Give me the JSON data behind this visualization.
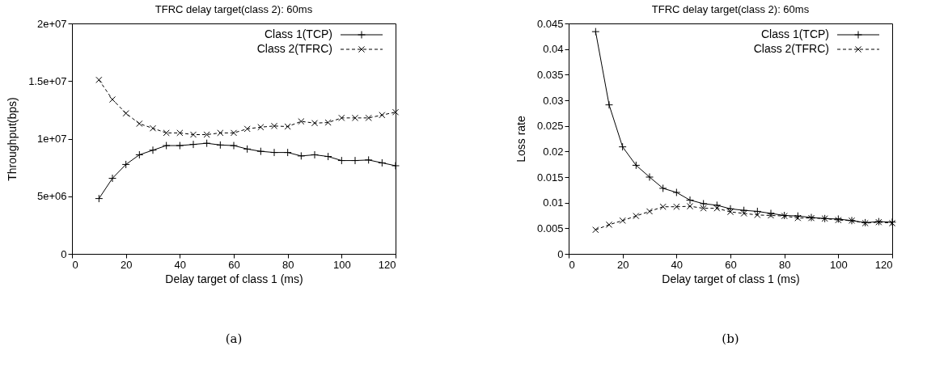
{
  "chart_data": [
    {
      "type": "line",
      "title": "TFRC delay target(class 2): 60ms",
      "xlabel": "Delay target of class 1 (ms)",
      "ylabel": "Throughput(bps)",
      "annotations": [
        "(a)"
      ],
      "x": [
        10,
        15,
        20,
        25,
        30,
        35,
        40,
        45,
        50,
        55,
        60,
        65,
        70,
        75,
        80,
        85,
        90,
        95,
        100,
        105,
        110,
        115,
        120
      ],
      "series": [
        {
          "name": "Class 1(TCP)",
          "color": "#000000",
          "marker": "cross",
          "line_style": "solid",
          "values": [
            4800000,
            6560000,
            7760000,
            8600000,
            9000000,
            9400000,
            9400000,
            9500000,
            9600000,
            9450000,
            9400000,
            9100000,
            8900000,
            8800000,
            8800000,
            8500000,
            8600000,
            8450000,
            8100000,
            8100000,
            8150000,
            7900000,
            7650000
          ]
        },
        {
          "name": "Class 2(TFRC)",
          "color": "#000000",
          "marker": "x",
          "line_style": "dashed",
          "values": [
            15100000,
            13400000,
            12200000,
            11300000,
            10900000,
            10500000,
            10500000,
            10350000,
            10350000,
            10500000,
            10500000,
            10850000,
            11000000,
            11100000,
            11050000,
            11500000,
            11350000,
            11400000,
            11800000,
            11800000,
            11800000,
            12050000,
            12300000
          ]
        }
      ],
      "xlim": [
        0,
        120
      ],
      "xticks": [
        0,
        20,
        40,
        60,
        80,
        100,
        120
      ],
      "ylim": [
        0,
        20000000
      ],
      "yticks": [
        0,
        {
          "value": 5000000,
          "label": "5e+06"
        },
        {
          "value": 10000000,
          "label": "1e+07"
        },
        {
          "value": 15000000,
          "label": "1.5e+07"
        },
        {
          "value": 20000000,
          "label": "2e+07"
        }
      ],
      "grid": false,
      "legend": "top right"
    },
    {
      "type": "line",
      "title": "TFRC delay target(class 2): 60ms",
      "xlabel": "Delay target of class 1 (ms)",
      "ylabel": "Loss rate",
      "annotations": [
        "(b)"
      ],
      "x": [
        10,
        15,
        20,
        25,
        30,
        35,
        40,
        45,
        50,
        55,
        60,
        65,
        70,
        75,
        80,
        85,
        90,
        95,
        100,
        105,
        110,
        115,
        120
      ],
      "series": [
        {
          "name": "Class 1(TCP)",
          "color": "#000000",
          "marker": "cross",
          "line_style": "solid",
          "values": [
            0.0434,
            0.0291,
            0.0209,
            0.0173,
            0.015,
            0.0128,
            0.012,
            0.0105,
            0.0098,
            0.0095,
            0.0088,
            0.0085,
            0.0083,
            0.0079,
            0.0075,
            0.0074,
            0.0071,
            0.0069,
            0.0068,
            0.0065,
            0.0061,
            0.0063,
            0.0062
          ]
        },
        {
          "name": "Class 2(TFRC)",
          "color": "#000000",
          "marker": "x",
          "line_style": "dashed",
          "values": [
            0.0047,
            0.0057,
            0.0065,
            0.0074,
            0.0083,
            0.0092,
            0.0092,
            0.0093,
            0.0089,
            0.0089,
            0.0082,
            0.0079,
            0.0076,
            0.0075,
            0.0074,
            0.007,
            0.007,
            0.0069,
            0.0066,
            0.0065,
            0.006,
            0.0062,
            0.006
          ]
        }
      ],
      "xlim": [
        0,
        120
      ],
      "xticks": [
        0,
        20,
        40,
        60,
        80,
        100,
        120
      ],
      "ylim": [
        0,
        0.045
      ],
      "yticks": [
        0,
        0.005,
        0.01,
        0.015,
        0.02,
        0.025,
        0.03,
        0.035,
        0.04,
        0.045
      ],
      "grid": false,
      "legend": "top right"
    }
  ]
}
